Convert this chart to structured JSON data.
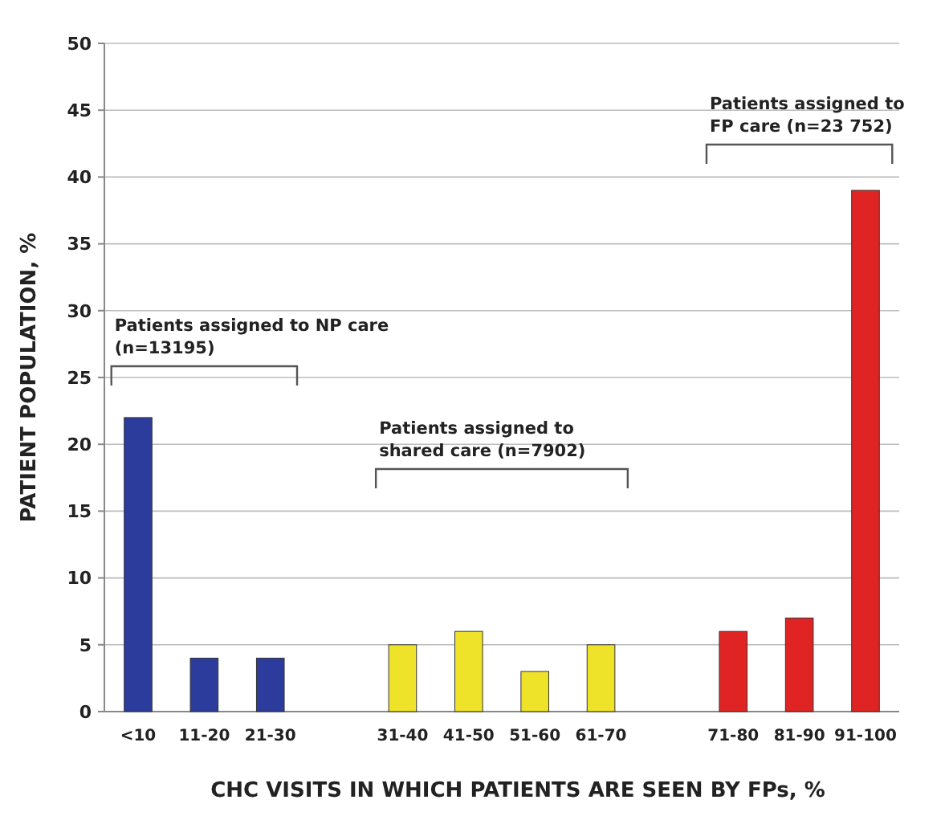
{
  "chart_data": {
    "type": "bar",
    "xlabel": "CHC VISITS IN WHICH PATIENTS ARE SEEN BY FPs, %",
    "ylabel": "PATIENT POPULATION, %",
    "categories": [
      "<10",
      "11-20",
      "21-30",
      null,
      "31-40",
      "41-50",
      "51-60",
      "61-70",
      null,
      "71-80",
      "81-90",
      "91-100"
    ],
    "values": [
      22,
      4,
      4,
      null,
      5,
      6,
      3,
      5,
      null,
      6,
      7,
      39
    ],
    "colors": [
      "#2b3c9c",
      "#2b3c9c",
      "#2b3c9c",
      null,
      "#efe32a",
      "#efe32a",
      "#efe32a",
      "#efe32a",
      null,
      "#e02424",
      "#e02424",
      "#e02424"
    ],
    "ylim": [
      0,
      50
    ],
    "yticks": [
      0,
      5,
      10,
      15,
      20,
      25,
      30,
      35,
      40,
      45,
      50
    ],
    "grid": "y",
    "annotations": [
      "Patients assigned to NP care (n=13195)",
      "Patients assigned to shared care (n=7902)",
      "Patients assigned to FP care (n=23 752)"
    ]
  }
}
